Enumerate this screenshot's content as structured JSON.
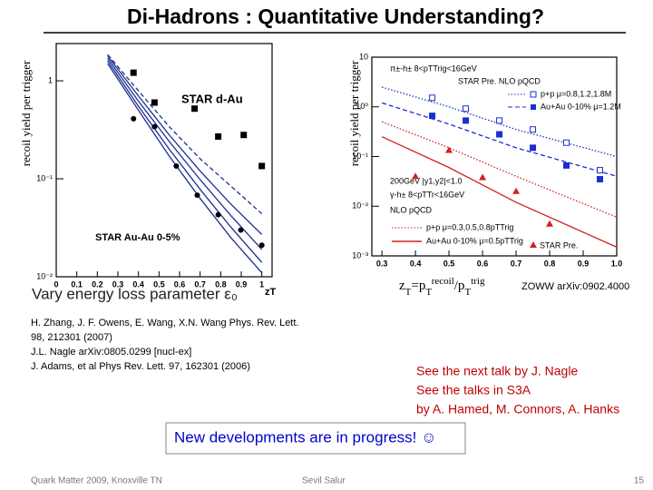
{
  "slide": {
    "title": "Di-Hadrons : Quantitative Understanding?",
    "caption": "Vary energy loss parameter ε₀",
    "references": [
      "H. Zhang, J. F. Owens, E. Wang, X.N. Wang  Phys. Rev. Lett.",
      "98, 212301 (2007)",
      "J.L. Nagle arXiv:0805.0299 [nucl-ex]",
      "J. Adams, et al  Phys Rev. Lett. 97, 162301 (2006)"
    ],
    "citation": "ZOWW arXiv:0902.4000",
    "talks": [
      "See the next talk by J. Nagle",
      "See the talks in S3A",
      "by A. Hamed, M. Connors, A. Hanks"
    ],
    "highlight": "New developments are in progress!  ☺",
    "footer": {
      "left": "Quark Matter 2009, Knoxville TN",
      "center": "Sevil Salur",
      "page": "15"
    }
  },
  "chart_data": [
    {
      "type": "scatter",
      "log_y": true,
      "y_label": "recoil yield per trigger",
      "x_label": "zT",
      "xlim": [
        0,
        1.05
      ],
      "xticks": [
        0,
        0.1,
        0.2,
        0.3,
        0.4,
        0.5,
        0.6,
        0.7,
        0.8,
        0.9,
        1
      ],
      "ylim": [
        0.01,
        2.4
      ],
      "yticks": [
        {
          "value": 0.01,
          "label": "10⁻²"
        },
        {
          "value": 0.1,
          "label": "10⁻¹"
        },
        1
      ],
      "annotations": [
        "STAR d-Au",
        "STAR Au-Au 0-5%"
      ],
      "series": [
        {
          "style": "solid",
          "color": "#1a2f8f",
          "x": [
            0.25,
            0.4,
            0.55,
            0.7,
            0.85,
            1.0
          ],
          "values": [
            1.7,
            0.62,
            0.24,
            0.098,
            0.042,
            0.019
          ]
        },
        {
          "style": "solid",
          "color": "#1a2f8f",
          "x": [
            0.25,
            0.4,
            0.55,
            0.7,
            0.85,
            1.0
          ],
          "values": [
            1.6,
            0.55,
            0.2,
            0.078,
            0.032,
            0.014
          ]
        },
        {
          "style": "solid",
          "color": "#1a2f8f",
          "x": [
            0.25,
            0.4,
            0.55,
            0.7,
            0.85,
            1.0
          ],
          "values": [
            1.5,
            0.5,
            0.17,
            0.063,
            0.025,
            0.011
          ]
        },
        {
          "style": "solid",
          "color": "#1a2f8f",
          "x": [
            0.25,
            0.4,
            0.55,
            0.7,
            0.85,
            1.0
          ],
          "values": [
            1.8,
            0.7,
            0.28,
            0.12,
            0.055,
            0.027
          ]
        },
        {
          "style": "dashed",
          "color": "#1a2f8f",
          "x": [
            0.25,
            0.4,
            0.55,
            0.7,
            0.85,
            1.0
          ],
          "values": [
            1.85,
            0.79,
            0.34,
            0.16,
            0.084,
            0.044
          ]
        },
        {
          "style": "square",
          "color": "#000000",
          "x": [
            0.376,
            0.478,
            0.673,
            0.788,
            0.912,
            1.0
          ],
          "values": [
            1.21,
            0.6,
            0.52,
            0.27,
            0.28,
            0.135
          ]
        },
        {
          "style": "circle",
          "color": "#000000",
          "x": [
            0.376,
            0.478,
            0.584,
            0.686,
            0.788,
            0.898,
            1.0
          ],
          "values": [
            0.41,
            0.34,
            0.135,
            0.068,
            0.043,
            0.03,
            0.021
          ]
        }
      ]
    },
    {
      "type": "scatter",
      "log_y": true,
      "y_label": "recoil yield per trigger",
      "x_label": [
        "z",
        "T",
        "=p",
        "T",
        "recoil",
        "/p",
        "T",
        "trig"
      ],
      "xlim": [
        0.27,
        1.0
      ],
      "xticks": [
        0.3,
        0.4,
        0.5,
        0.6,
        0.7,
        0.8,
        0.9,
        {
          "value": 1.0,
          "label": "1.0"
        }
      ],
      "ylim": [
        0.001,
        10
      ],
      "yticks": [
        {
          "value": 0.001,
          "label": "10⁻³"
        },
        {
          "value": 0.01,
          "label": "10⁻²"
        },
        {
          "value": 0.1,
          "label": "10⁻¹"
        },
        {
          "value": 1,
          "label": "10⁰"
        },
        10
      ],
      "annotations": [
        "π±-h±   8<pTTrig<16GeV",
        "STAR Pre.  NLO pQCD",
        "p+p μ=0.8,1.2,1.8M",
        "Au+Au 0-10% μ=1.2M",
        "200GeV  |y1,y2|<1.0",
        "γ-h±  8<pTTr<16GeV",
        "NLO pQCD",
        "p+p μ=0.3,0.5,0.8pTTrig",
        "Au+Au 0-10% μ=0.5pTTrig",
        "STAR Pre."
      ],
      "series": [
        {
          "style": "dotted",
          "color": "#1a2fcf",
          "x": [
            0.3,
            0.5,
            0.7,
            1.0
          ],
          "values": [
            2.5,
            1.0,
            0.35,
            0.1
          ]
        },
        {
          "style": "dashed",
          "color": "#1a2fcf",
          "x": [
            0.3,
            0.5,
            0.7,
            1.0
          ],
          "values": [
            1.2,
            0.45,
            0.15,
            0.04
          ]
        },
        {
          "style": "dotted",
          "color": "#d42020",
          "x": [
            0.3,
            0.5,
            0.7,
            1.0
          ],
          "values": [
            0.5,
            0.15,
            0.04,
            0.006
          ]
        },
        {
          "style": "solid",
          "color": "#d42020",
          "x": [
            0.3,
            0.5,
            0.7,
            1.0
          ],
          "values": [
            0.25,
            0.06,
            0.012,
            0.0015
          ]
        },
        {
          "style": "open-square",
          "color": "#1a2fcf",
          "x": [
            0.45,
            0.55,
            0.65,
            0.75,
            0.85,
            0.95
          ],
          "values": [
            1.52,
            0.92,
            0.53,
            0.35,
            0.19,
            0.053
          ]
        },
        {
          "style": "square",
          "color": "#1a2fcf",
          "x": [
            0.45,
            0.55,
            0.65,
            0.75,
            0.85,
            0.95
          ],
          "values": [
            0.66,
            0.53,
            0.28,
            0.15,
            0.066,
            0.035
          ]
        },
        {
          "style": "triangle",
          "color": "#d42020",
          "x": [
            0.4,
            0.5,
            0.6,
            0.7,
            0.8
          ],
          "values": [
            0.04,
            0.134,
            0.038,
            0.02,
            0.0044
          ]
        }
      ]
    }
  ]
}
